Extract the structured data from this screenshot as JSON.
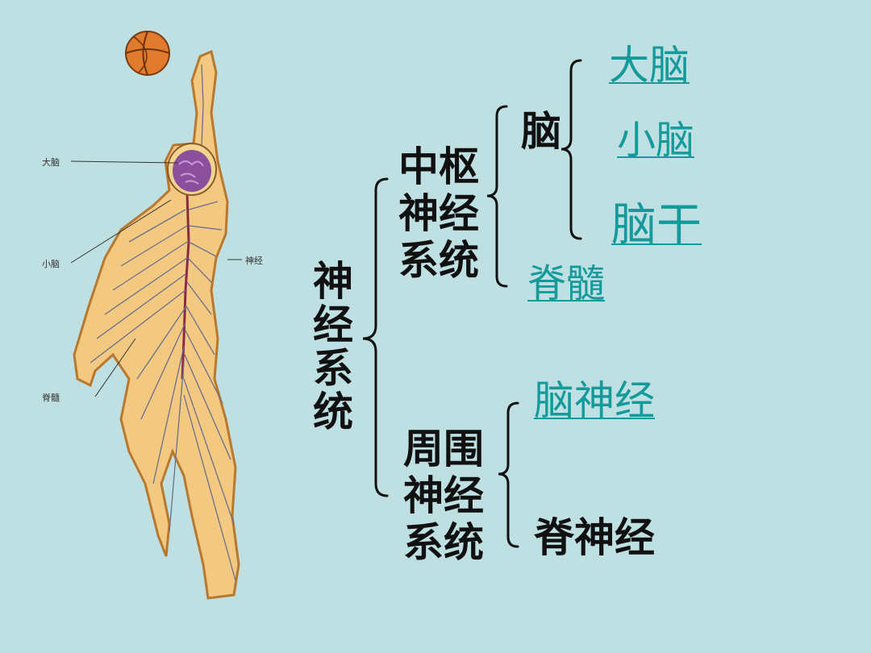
{
  "figure_labels": {
    "brain": "大脑",
    "cerebellum": "小脑",
    "nerve": "神经",
    "spinal_cord": "脊髓"
  },
  "tree": {
    "root": "神经系统",
    "central": {
      "label_lines": [
        "中枢",
        "神经",
        "系统"
      ],
      "brain": {
        "label": "脑",
        "parts": [
          "大脑",
          "小脑",
          "脑干"
        ]
      },
      "spinal_cord": "脊髓"
    },
    "peripheral": {
      "label_lines": [
        "周围",
        "神经",
        "系统"
      ],
      "parts": [
        "脑神经",
        "脊神经"
      ]
    }
  },
  "colors": {
    "background": "#bfe0e3",
    "link": "#149a9a",
    "text": "#111111"
  }
}
